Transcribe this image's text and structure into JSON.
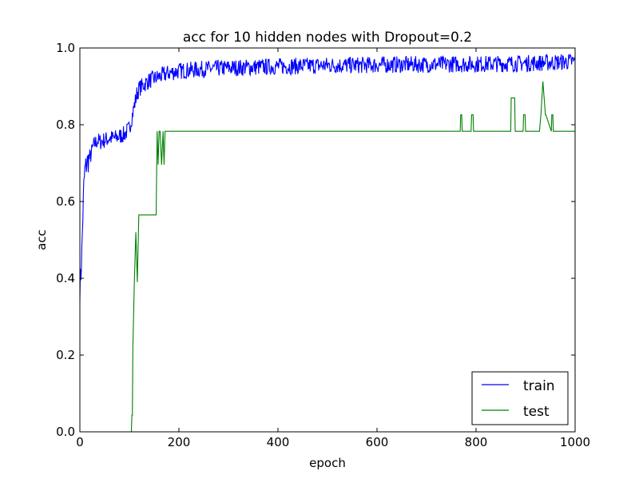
{
  "chart_data": {
    "type": "line",
    "title": "acc for 10 hidden nodes with Dropout=0.2",
    "xlabel": "epoch",
    "ylabel": "acc",
    "xlim": [
      0,
      1000
    ],
    "ylim": [
      0.0,
      1.0
    ],
    "xticks": [
      "0",
      "200",
      "400",
      "600",
      "800",
      "1000"
    ],
    "yticks": [
      "0.0",
      "0.2",
      "0.4",
      "0.6",
      "0.8",
      "1.0"
    ],
    "grid": false,
    "legend_position": "bottom-right",
    "series": [
      {
        "name": "train",
        "color": "#0000ff",
        "style": "noisy",
        "x": [
          0,
          2,
          4,
          6,
          8,
          10,
          14,
          18,
          22,
          26,
          30,
          36,
          40,
          50,
          60,
          70,
          80,
          90,
          100,
          105,
          110,
          115,
          120,
          130,
          140,
          150,
          160,
          180,
          200,
          250,
          300,
          350,
          400,
          450,
          500,
          550,
          600,
          650,
          700,
          750,
          800,
          850,
          900,
          950,
          1000
        ],
        "values": [
          0.38,
          0.41,
          0.47,
          0.56,
          0.64,
          0.68,
          0.7,
          0.71,
          0.72,
          0.74,
          0.75,
          0.76,
          0.755,
          0.76,
          0.765,
          0.765,
          0.77,
          0.775,
          0.79,
          0.82,
          0.85,
          0.88,
          0.895,
          0.905,
          0.915,
          0.92,
          0.925,
          0.935,
          0.94,
          0.945,
          0.948,
          0.95,
          0.952,
          0.953,
          0.955,
          0.955,
          0.956,
          0.957,
          0.957,
          0.958,
          0.958,
          0.959,
          0.96,
          0.962,
          0.965
        ],
        "noise": 0.022
      },
      {
        "name": "test",
        "color": "#008000",
        "style": "step",
        "x": [
          0,
          104,
          105,
          106,
          107,
          110,
          113,
          116,
          119,
          154,
          156,
          158,
          160,
          162,
          165,
          168,
          170,
          172,
          200,
          400,
          600,
          768,
          769,
          771,
          772,
          790,
          791,
          794,
          795,
          870,
          871,
          878,
          879,
          895,
          896,
          899,
          900,
          928,
          931,
          933,
          935,
          940,
          941,
          952,
          953,
          955,
          956,
          1000
        ],
        "values": [
          0.0,
          0.0,
          0.043,
          0.043,
          0.22,
          0.39,
          0.52,
          0.39,
          0.565,
          0.565,
          0.783,
          0.696,
          0.783,
          0.783,
          0.696,
          0.783,
          0.696,
          0.783,
          0.783,
          0.783,
          0.783,
          0.783,
          0.826,
          0.826,
          0.783,
          0.783,
          0.826,
          0.826,
          0.783,
          0.783,
          0.87,
          0.87,
          0.783,
          0.783,
          0.826,
          0.826,
          0.783,
          0.783,
          0.826,
          0.87,
          0.913,
          0.826,
          0.826,
          0.783,
          0.826,
          0.826,
          0.783,
          0.783
        ]
      }
    ]
  }
}
